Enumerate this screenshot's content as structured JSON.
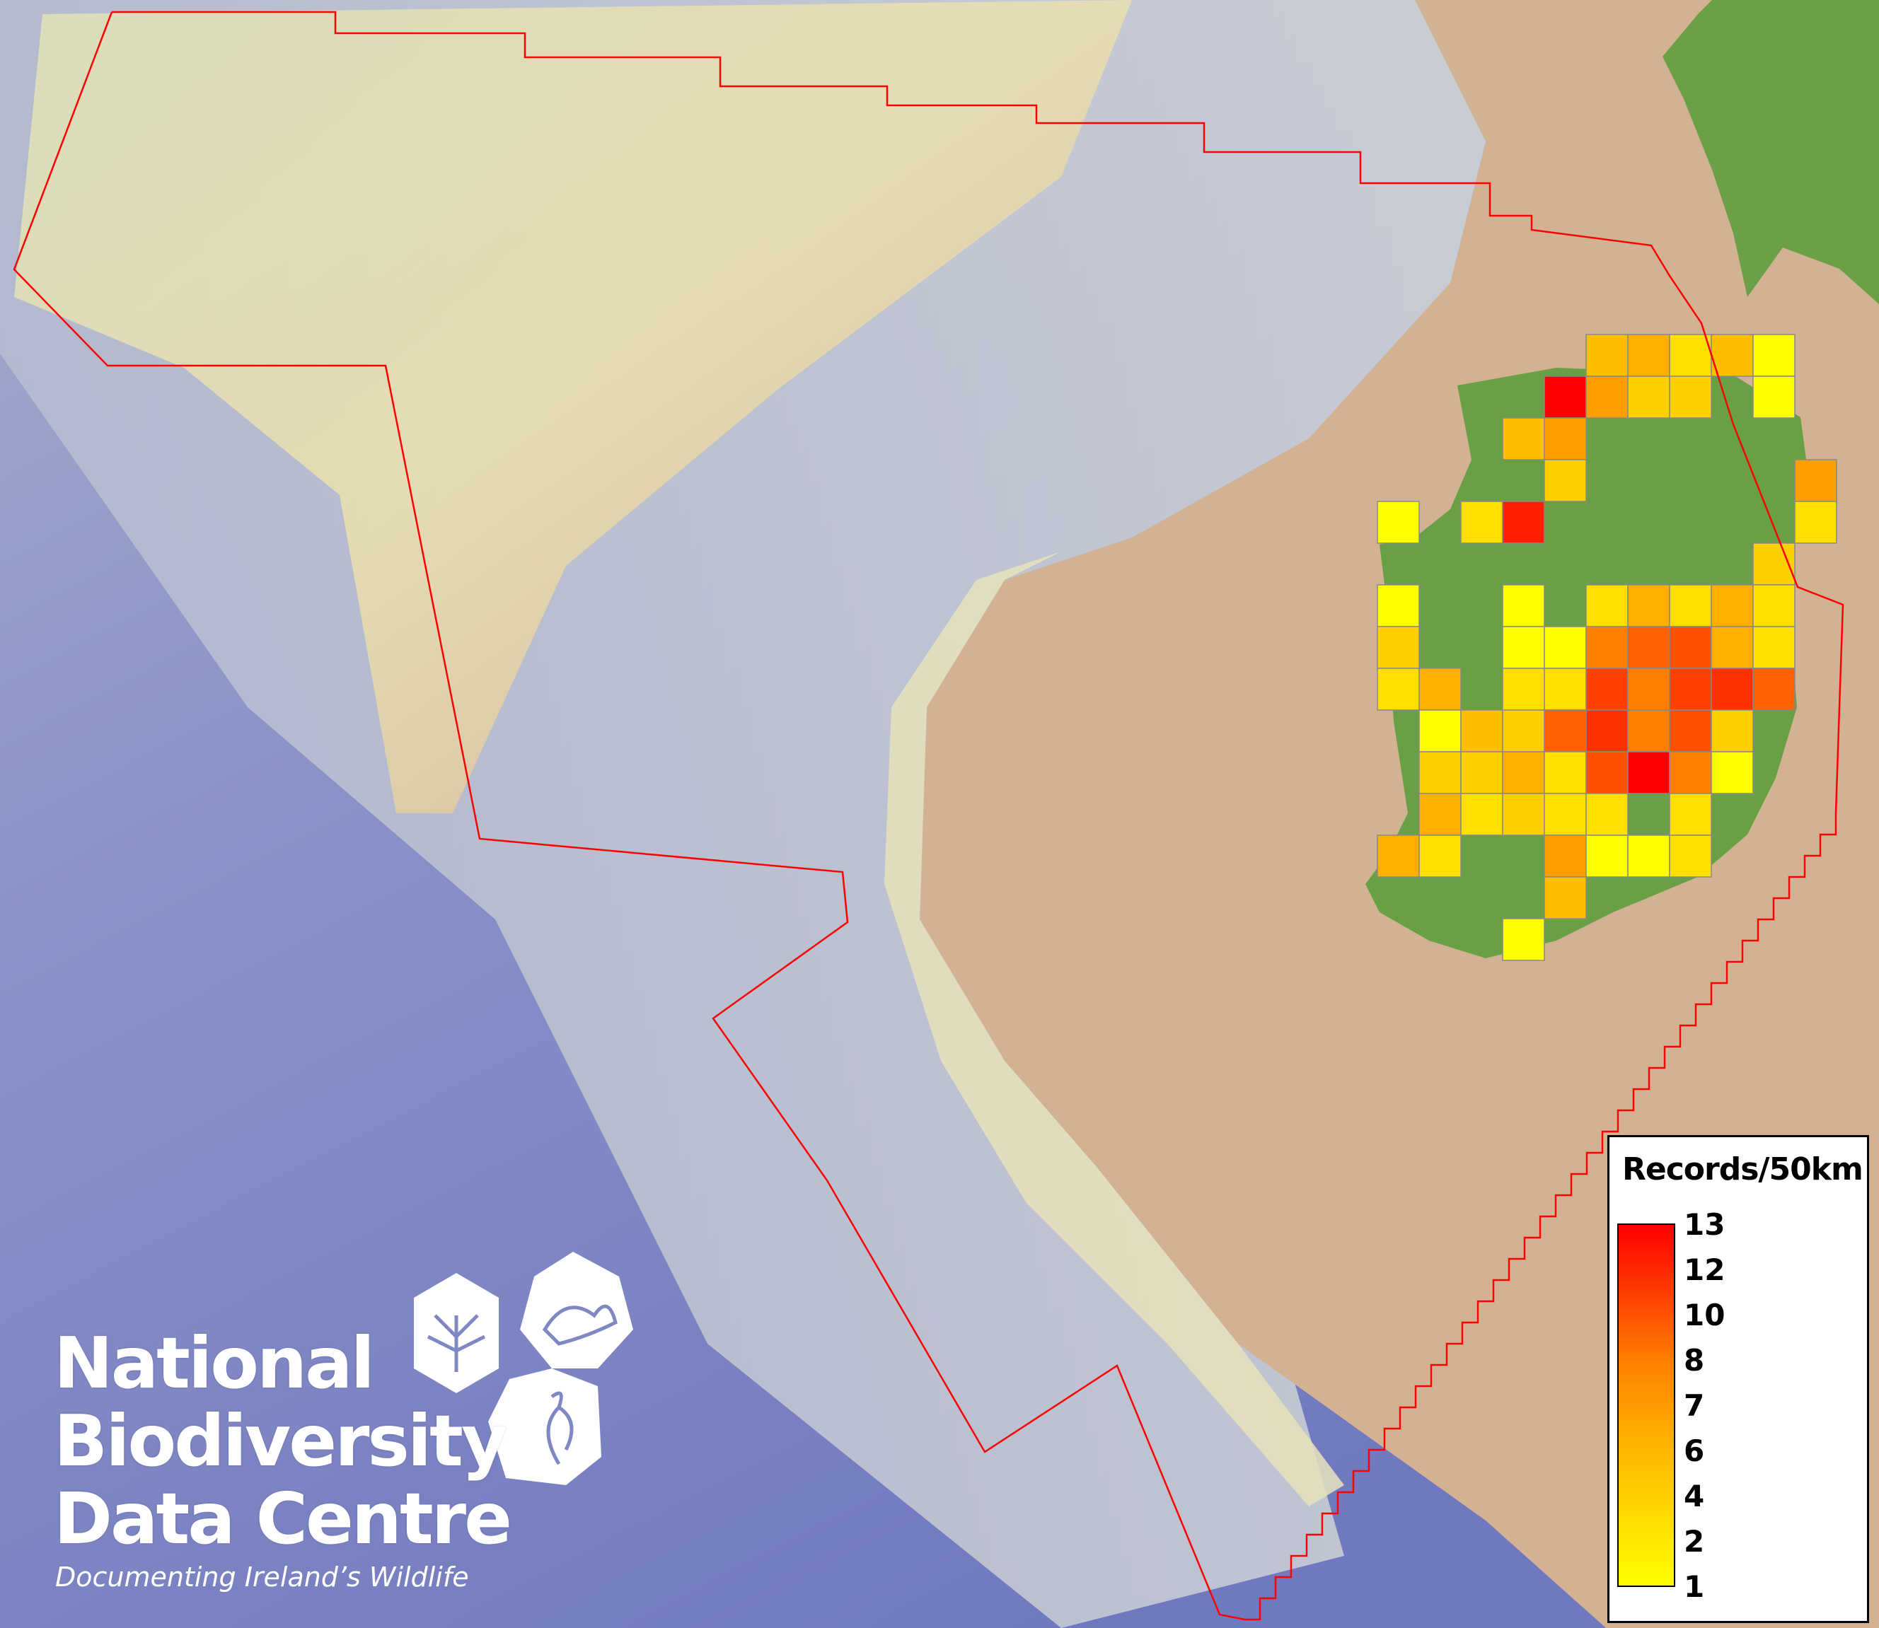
{
  "map": {
    "colors": {
      "land": "#69a045",
      "sea_deep": "#7c84c6",
      "shelf": "#e8e2b8",
      "tan": "#cfaa8c",
      "boundary": "#ff0000",
      "grid_border": "#888888"
    },
    "grid_cells": [
      {
        "row": 0,
        "col": 5,
        "records": 4
      },
      {
        "row": 0,
        "col": 6,
        "records": 5
      },
      {
        "row": 0,
        "col": 7,
        "records": 2
      },
      {
        "row": 0,
        "col": 8,
        "records": 4
      },
      {
        "row": 0,
        "col": 9,
        "records": 1
      },
      {
        "row": 1,
        "col": 4,
        "records": 13
      },
      {
        "row": 1,
        "col": 5,
        "records": 6
      },
      {
        "row": 1,
        "col": 6,
        "records": 3
      },
      {
        "row": 1,
        "col": 7,
        "records": 3
      },
      {
        "row": 1,
        "col": 9,
        "records": 1
      },
      {
        "row": 2,
        "col": 3,
        "records": 4
      },
      {
        "row": 2,
        "col": 4,
        "records": 6
      },
      {
        "row": 3,
        "col": 4,
        "records": 3
      },
      {
        "row": 3,
        "col": 10,
        "records": 6
      },
      {
        "row": 4,
        "col": 0,
        "records": 1
      },
      {
        "row": 4,
        "col": 2,
        "records": 2
      },
      {
        "row": 4,
        "col": 3,
        "records": 12
      },
      {
        "row": 4,
        "col": 10,
        "records": 2
      },
      {
        "row": 5,
        "col": 9,
        "records": 3
      },
      {
        "row": 6,
        "col": 0,
        "records": 1
      },
      {
        "row": 6,
        "col": 3,
        "records": 1
      },
      {
        "row": 6,
        "col": 5,
        "records": 2
      },
      {
        "row": 6,
        "col": 6,
        "records": 5
      },
      {
        "row": 6,
        "col": 7,
        "records": 2
      },
      {
        "row": 6,
        "col": 8,
        "records": 5
      },
      {
        "row": 6,
        "col": 9,
        "records": 2
      },
      {
        "row": 7,
        "col": 0,
        "records": 3
      },
      {
        "row": 7,
        "col": 3,
        "records": 1
      },
      {
        "row": 7,
        "col": 4,
        "records": 1
      },
      {
        "row": 7,
        "col": 5,
        "records": 7
      },
      {
        "row": 7,
        "col": 6,
        "records": 8
      },
      {
        "row": 7,
        "col": 7,
        "records": 9
      },
      {
        "row": 7,
        "col": 8,
        "records": 5
      },
      {
        "row": 7,
        "col": 9,
        "records": 2
      },
      {
        "row": 8,
        "col": 0,
        "records": 2
      },
      {
        "row": 8,
        "col": 1,
        "records": 5
      },
      {
        "row": 8,
        "col": 3,
        "records": 2
      },
      {
        "row": 8,
        "col": 4,
        "records": 2
      },
      {
        "row": 8,
        "col": 5,
        "records": 10
      },
      {
        "row": 8,
        "col": 6,
        "records": 7
      },
      {
        "row": 8,
        "col": 7,
        "records": 10
      },
      {
        "row": 8,
        "col": 8,
        "records": 11
      },
      {
        "row": 8,
        "col": 9,
        "records": 8
      },
      {
        "row": 9,
        "col": 1,
        "records": 1
      },
      {
        "row": 9,
        "col": 2,
        "records": 4
      },
      {
        "row": 9,
        "col": 3,
        "records": 3
      },
      {
        "row": 9,
        "col": 4,
        "records": 8
      },
      {
        "row": 9,
        "col": 5,
        "records": 11
      },
      {
        "row": 9,
        "col": 6,
        "records": 7
      },
      {
        "row": 9,
        "col": 7,
        "records": 9
      },
      {
        "row": 9,
        "col": 8,
        "records": 3
      },
      {
        "row": 10,
        "col": 1,
        "records": 3
      },
      {
        "row": 10,
        "col": 2,
        "records": 3
      },
      {
        "row": 10,
        "col": 3,
        "records": 5
      },
      {
        "row": 10,
        "col": 4,
        "records": 2
      },
      {
        "row": 10,
        "col": 5,
        "records": 9
      },
      {
        "row": 10,
        "col": 6,
        "records": 13
      },
      {
        "row": 10,
        "col": 7,
        "records": 7
      },
      {
        "row": 10,
        "col": 8,
        "records": 1
      },
      {
        "row": 11,
        "col": 1,
        "records": 5
      },
      {
        "row": 11,
        "col": 2,
        "records": 2
      },
      {
        "row": 11,
        "col": 3,
        "records": 3
      },
      {
        "row": 11,
        "col": 4,
        "records": 2
      },
      {
        "row": 11,
        "col": 5,
        "records": 2
      },
      {
        "row": 11,
        "col": 7,
        "records": 2
      },
      {
        "row": 12,
        "col": 0,
        "records": 5
      },
      {
        "row": 12,
        "col": 1,
        "records": 2
      },
      {
        "row": 12,
        "col": 4,
        "records": 6
      },
      {
        "row": 12,
        "col": 5,
        "records": 1
      },
      {
        "row": 12,
        "col": 6,
        "records": 1
      },
      {
        "row": 12,
        "col": 7,
        "records": 2
      },
      {
        "row": 13,
        "col": 4,
        "records": 4
      },
      {
        "row": 14,
        "col": 3,
        "records": 1
      }
    ]
  },
  "legend": {
    "title": "Records/50km",
    "ticks": [
      "13",
      "12",
      "10",
      "8",
      "7",
      "6",
      "4",
      "2",
      "1"
    ],
    "color_max": "#ff0000",
    "color_min": "#ffff00"
  },
  "logo": {
    "line1": "National",
    "line2": "Biodiversity",
    "line3": "Data Centre",
    "tagline": "Documenting Ireland’s Wildlife"
  }
}
